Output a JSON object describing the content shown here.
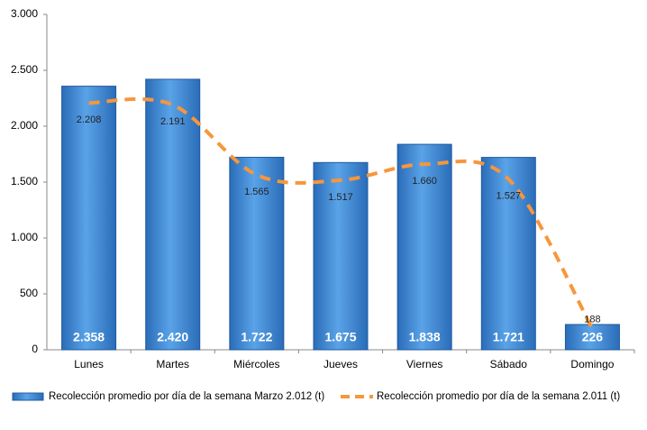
{
  "chart_data": {
    "type": "bar",
    "categories": [
      "Lunes",
      "Martes",
      "Miércoles",
      "Jueves",
      "Viernes",
      "Sábado",
      "Domingo"
    ],
    "series": [
      {
        "name": "Recolección promedio por día de la semana Marzo 2.012 (t)",
        "type": "bar",
        "color": "#3f86d0",
        "values": [
          2358,
          2420,
          1722,
          1675,
          1838,
          1721,
          226
        ],
        "value_labels": [
          "2.358",
          "2.420",
          "1.722",
          "1.675",
          "1.838",
          "1.721",
          "226"
        ]
      },
      {
        "name": "Recolección promedio por día de la semana 2.011 (t)",
        "type": "line",
        "color": "#f7963c",
        "values": [
          2208,
          2191,
          1565,
          1517,
          1660,
          1527,
          188
        ],
        "value_labels": [
          "2.208",
          "2.191",
          "1.565",
          "1.517",
          "1.660",
          "1.527",
          "188"
        ]
      }
    ],
    "ylim": [
      0,
      3000
    ],
    "yticks": [
      0,
      500,
      {
        "value": 1000,
        "label": "1.000"
      },
      {
        "value": 1500,
        "label": "1.500"
      },
      {
        "value": 2000,
        "label": "2.000"
      },
      {
        "value": 2500,
        "label": "2.500"
      },
      {
        "value": 3000,
        "label": "3.000"
      }
    ],
    "grid": false,
    "legend": "bottom"
  }
}
